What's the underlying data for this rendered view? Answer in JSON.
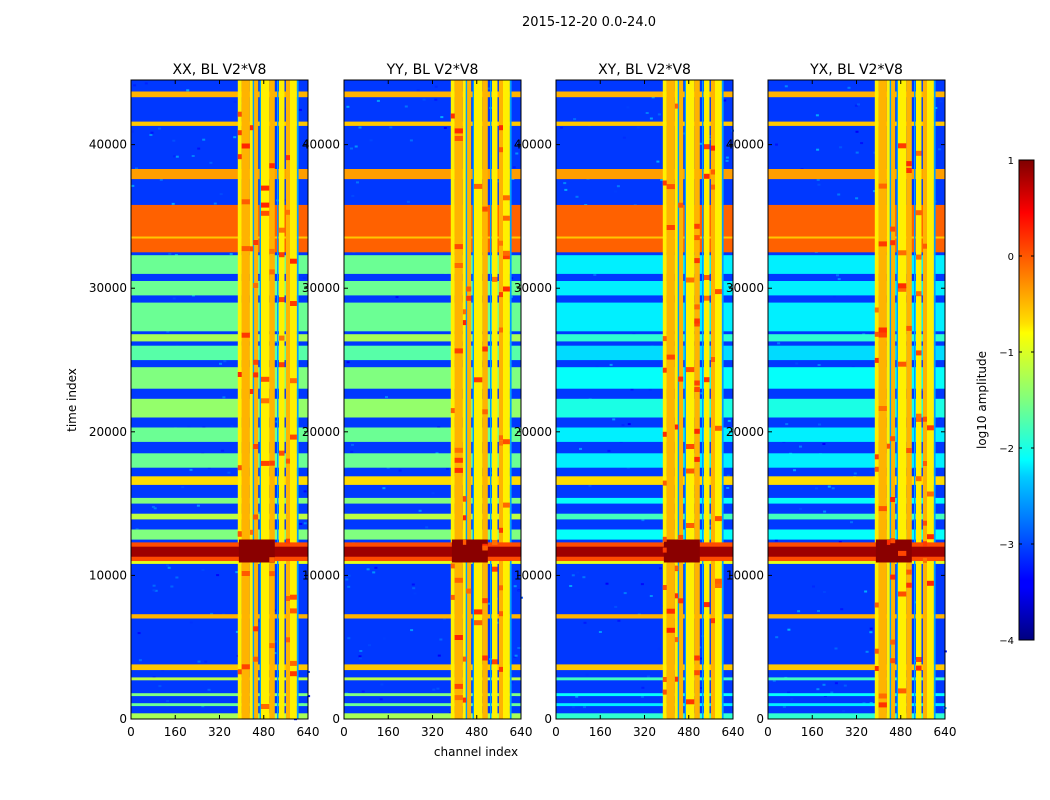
{
  "chart_data": {
    "type": "heatmap",
    "suptitle": "2015-12-20 0.0-24.0",
    "xlabel": "channel index",
    "ylabel": "time index",
    "xlim": [
      0,
      640
    ],
    "ylim": [
      0,
      44500
    ],
    "xticks": [
      0,
      160,
      320,
      480,
      640
    ],
    "yticks": [
      0,
      10000,
      20000,
      30000,
      40000
    ],
    "panels": [
      {
        "title": "XX, BL V2*V8",
        "pol": "XX"
      },
      {
        "title": "YY, BL V2*V8",
        "pol": "YY"
      },
      {
        "title": "XY, BL V2*V8",
        "pol": "XY"
      },
      {
        "title": "YX, BL V2*V8",
        "pol": "YX"
      }
    ],
    "colorbar": {
      "label": "log10 amplitude",
      "min": -4,
      "max": 1,
      "ticks": [
        1,
        0,
        -1,
        -2,
        -3,
        -4
      ],
      "tick_labels": [
        "1",
        "0",
        "−1",
        "−2",
        "−3",
        "−4"
      ],
      "colormap": "jet"
    }
  }
}
